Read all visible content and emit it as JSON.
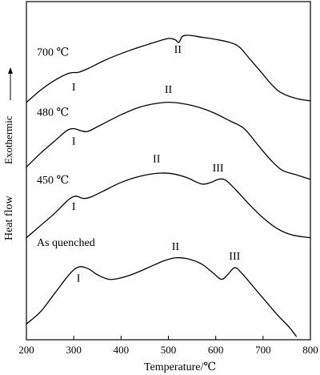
{
  "chart_data": {
    "type": "line",
    "xlabel": "Temperature/℃",
    "ylabel": "Heat flow",
    "y_arrow_label": "Exothermic",
    "xlim": [
      200,
      800
    ],
    "ylim": [
      0,
      1
    ],
    "x_ticks": [
      200,
      300,
      400,
      500,
      600,
      700,
      800
    ],
    "y_ticks_shown": false,
    "grid": false,
    "series": [
      {
        "name": "As quenched",
        "points": [
          [
            200,
            0.02
          ],
          [
            230,
            0.06
          ],
          [
            260,
            0.12
          ],
          [
            290,
            0.18
          ],
          [
            310,
            0.205
          ],
          [
            330,
            0.2
          ],
          [
            350,
            0.18
          ],
          [
            375,
            0.165
          ],
          [
            400,
            0.17
          ],
          [
            430,
            0.185
          ],
          [
            460,
            0.205
          ],
          [
            490,
            0.225
          ],
          [
            515,
            0.235
          ],
          [
            540,
            0.232
          ],
          [
            570,
            0.215
          ],
          [
            595,
            0.185
          ],
          [
            612,
            0.165
          ],
          [
            625,
            0.18
          ],
          [
            640,
            0.203
          ],
          [
            655,
            0.185
          ],
          [
            680,
            0.14
          ],
          [
            705,
            0.095
          ],
          [
            730,
            0.05
          ],
          [
            755,
            0.01
          ],
          [
            770,
            -0.02
          ]
        ],
        "peak_labels": [
          {
            "text": "I",
            "x": 310
          },
          {
            "text": "II",
            "x": 515
          },
          {
            "text": "III",
            "x": 640
          }
        ]
      },
      {
        "name": "450 ℃",
        "points": [
          [
            200,
            0.3
          ],
          [
            230,
            0.34
          ],
          [
            260,
            0.38
          ],
          [
            290,
            0.425
          ],
          [
            305,
            0.435
          ],
          [
            320,
            0.428
          ],
          [
            335,
            0.432
          ],
          [
            360,
            0.45
          ],
          [
            400,
            0.48
          ],
          [
            440,
            0.5
          ],
          [
            480,
            0.51
          ],
          [
            510,
            0.508
          ],
          [
            540,
            0.495
          ],
          [
            570,
            0.475
          ],
          [
            590,
            0.48
          ],
          [
            605,
            0.49
          ],
          [
            620,
            0.488
          ],
          [
            640,
            0.46
          ],
          [
            670,
            0.41
          ],
          [
            700,
            0.365
          ],
          [
            730,
            0.33
          ],
          [
            760,
            0.31
          ],
          [
            800,
            0.3
          ]
        ],
        "peak_labels": [
          {
            "text": "I",
            "x": 300
          },
          {
            "text": "II",
            "x": 475
          },
          {
            "text": "III",
            "x": 605
          }
        ]
      },
      {
        "name": "480 ℃",
        "points": [
          [
            200,
            0.53
          ],
          [
            230,
            0.575
          ],
          [
            260,
            0.615
          ],
          [
            285,
            0.648
          ],
          [
            300,
            0.655
          ],
          [
            315,
            0.648
          ],
          [
            330,
            0.646
          ],
          [
            355,
            0.665
          ],
          [
            400,
            0.7
          ],
          [
            440,
            0.725
          ],
          [
            480,
            0.738
          ],
          [
            510,
            0.74
          ],
          [
            550,
            0.73
          ],
          [
            590,
            0.71
          ],
          [
            630,
            0.68
          ],
          [
            660,
            0.655
          ],
          [
            690,
            0.6
          ],
          [
            715,
            0.555
          ],
          [
            740,
            0.52
          ],
          [
            770,
            0.505
          ],
          [
            800,
            0.49
          ]
        ],
        "peak_labels": [
          {
            "text": "I",
            "x": 300
          },
          {
            "text": "II",
            "x": 500
          }
        ]
      },
      {
        "name": "700 ℃",
        "points": [
          [
            200,
            0.74
          ],
          [
            230,
            0.78
          ],
          [
            260,
            0.812
          ],
          [
            290,
            0.835
          ],
          [
            310,
            0.838
          ],
          [
            330,
            0.85
          ],
          [
            370,
            0.88
          ],
          [
            420,
            0.91
          ],
          [
            470,
            0.935
          ],
          [
            500,
            0.948
          ],
          [
            515,
            0.943
          ],
          [
            522,
            0.935
          ],
          [
            530,
            0.955
          ],
          [
            545,
            0.958
          ],
          [
            570,
            0.952
          ],
          [
            600,
            0.945
          ],
          [
            630,
            0.935
          ],
          [
            650,
            0.92
          ],
          [
            670,
            0.885
          ],
          [
            695,
            0.84
          ],
          [
            720,
            0.795
          ],
          [
            740,
            0.77
          ],
          [
            770,
            0.753
          ],
          [
            800,
            0.745
          ]
        ],
        "peak_labels": [
          {
            "text": "I",
            "x": 300
          },
          {
            "text": "II",
            "x": 520
          }
        ]
      }
    ]
  }
}
